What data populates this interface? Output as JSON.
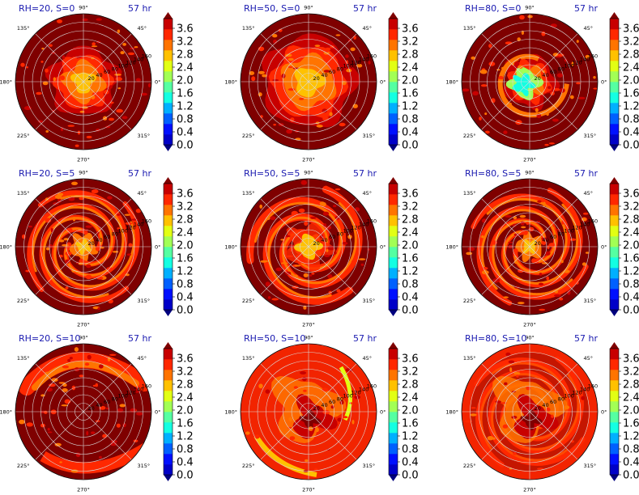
{
  "chart_data": [
    {
      "type": "heatmap",
      "title_left": "RH=20, S=0",
      "title_right": "57 hr",
      "pattern": "inner-blob",
      "radial_ticks": [
        "20",
        "40",
        "60",
        "80",
        "100",
        "120",
        "140",
        "160"
      ],
      "angle_ticks": [
        "0°",
        "45°",
        "90°",
        "135°",
        "180°",
        "225°",
        "270°",
        "315°"
      ]
    },
    {
      "type": "heatmap",
      "title_left": "RH=50, S=0",
      "title_right": "57 hr",
      "pattern": "inner-large",
      "radial_ticks": [
        "20",
        "40",
        "60",
        "80",
        "100",
        "120",
        "140",
        "160"
      ],
      "angle_ticks": [
        "0°",
        "45°",
        "90°",
        "135°",
        "180°",
        "225°",
        "270°",
        "315°"
      ]
    },
    {
      "type": "heatmap",
      "title_left": "RH=80, S=0",
      "title_right": "57 hr",
      "pattern": "core-low",
      "radial_ticks": [
        "20",
        "40",
        "60",
        "80",
        "100",
        "120",
        "140",
        "160"
      ],
      "angle_ticks": [
        "0°",
        "45°",
        "90°",
        "135°",
        "180°",
        "225°",
        "270°",
        "315°"
      ]
    },
    {
      "type": "heatmap",
      "title_left": "RH=20, S=5",
      "title_right": "57 hr",
      "pattern": "spiral",
      "radial_ticks": [
        "20",
        "40",
        "60",
        "80",
        "100",
        "120",
        "140",
        "160"
      ],
      "angle_ticks": [
        "0°",
        "45°",
        "90°",
        "135°",
        "180°",
        "225°",
        "270°",
        "315°"
      ]
    },
    {
      "type": "heatmap",
      "title_left": "RH=50, S=5",
      "title_right": "57 hr",
      "pattern": "spiral-wide",
      "radial_ticks": [
        "20",
        "40",
        "60",
        "80",
        "100",
        "120",
        "140",
        "160"
      ],
      "angle_ticks": [
        "0°",
        "45°",
        "90°",
        "135°",
        "180°",
        "225°",
        "270°",
        "315°"
      ]
    },
    {
      "type": "heatmap",
      "title_left": "RH=80, S=5",
      "title_right": "57 hr",
      "pattern": "spiral",
      "radial_ticks": [
        "20",
        "40",
        "60",
        "80",
        "100",
        "120",
        "140",
        "160"
      ],
      "angle_ticks": [
        "0°",
        "45°",
        "90°",
        "135°",
        "180°",
        "225°",
        "270°",
        "315°"
      ]
    },
    {
      "type": "heatmap",
      "title_left": "RH=20, S=10",
      "title_right": "57 hr",
      "pattern": "arc",
      "radial_ticks": [
        "20",
        "40",
        "60",
        "80",
        "100",
        "120",
        "140",
        "160"
      ],
      "angle_ticks": [
        "0°",
        "45°",
        "90°",
        "135°",
        "180°",
        "225°",
        "270°",
        "315°"
      ]
    },
    {
      "type": "heatmap",
      "title_left": "RH=50, S=10",
      "title_right": "57 hr",
      "pattern": "broad",
      "radial_ticks": [
        "20",
        "40",
        "60",
        "80",
        "100",
        "120",
        "140",
        "160"
      ],
      "angle_ticks": [
        "0°",
        "45°",
        "90°",
        "135°",
        "180°",
        "225°",
        "270°",
        "315°"
      ]
    },
    {
      "type": "heatmap",
      "title_left": "RH=80, S=10",
      "title_right": "57 hr",
      "pattern": "broad-spiral",
      "radial_ticks": [
        "20",
        "40",
        "60",
        "80",
        "100",
        "120",
        "140",
        "160"
      ],
      "angle_ticks": [
        "0°",
        "45°",
        "90°",
        "135°",
        "180°",
        "225°",
        "270°",
        "315°"
      ]
    }
  ],
  "colorbar": {
    "ticks": [
      "0.0",
      "0.4",
      "0.8",
      "1.2",
      "1.6",
      "2.0",
      "2.4",
      "2.8",
      "3.2",
      "3.6"
    ],
    "colors": [
      "#00007f",
      "#0000c8",
      "#0010ff",
      "#0060ff",
      "#00b0ff",
      "#14ffe2",
      "#55ffa2",
      "#a2ff55",
      "#e2ff14",
      "#ffc100",
      "#ff7400",
      "#ff2800",
      "#c80000",
      "#7f0000"
    ]
  },
  "style": {
    "title_color": "#1a1ab0",
    "background_max": "#7f0000"
  }
}
